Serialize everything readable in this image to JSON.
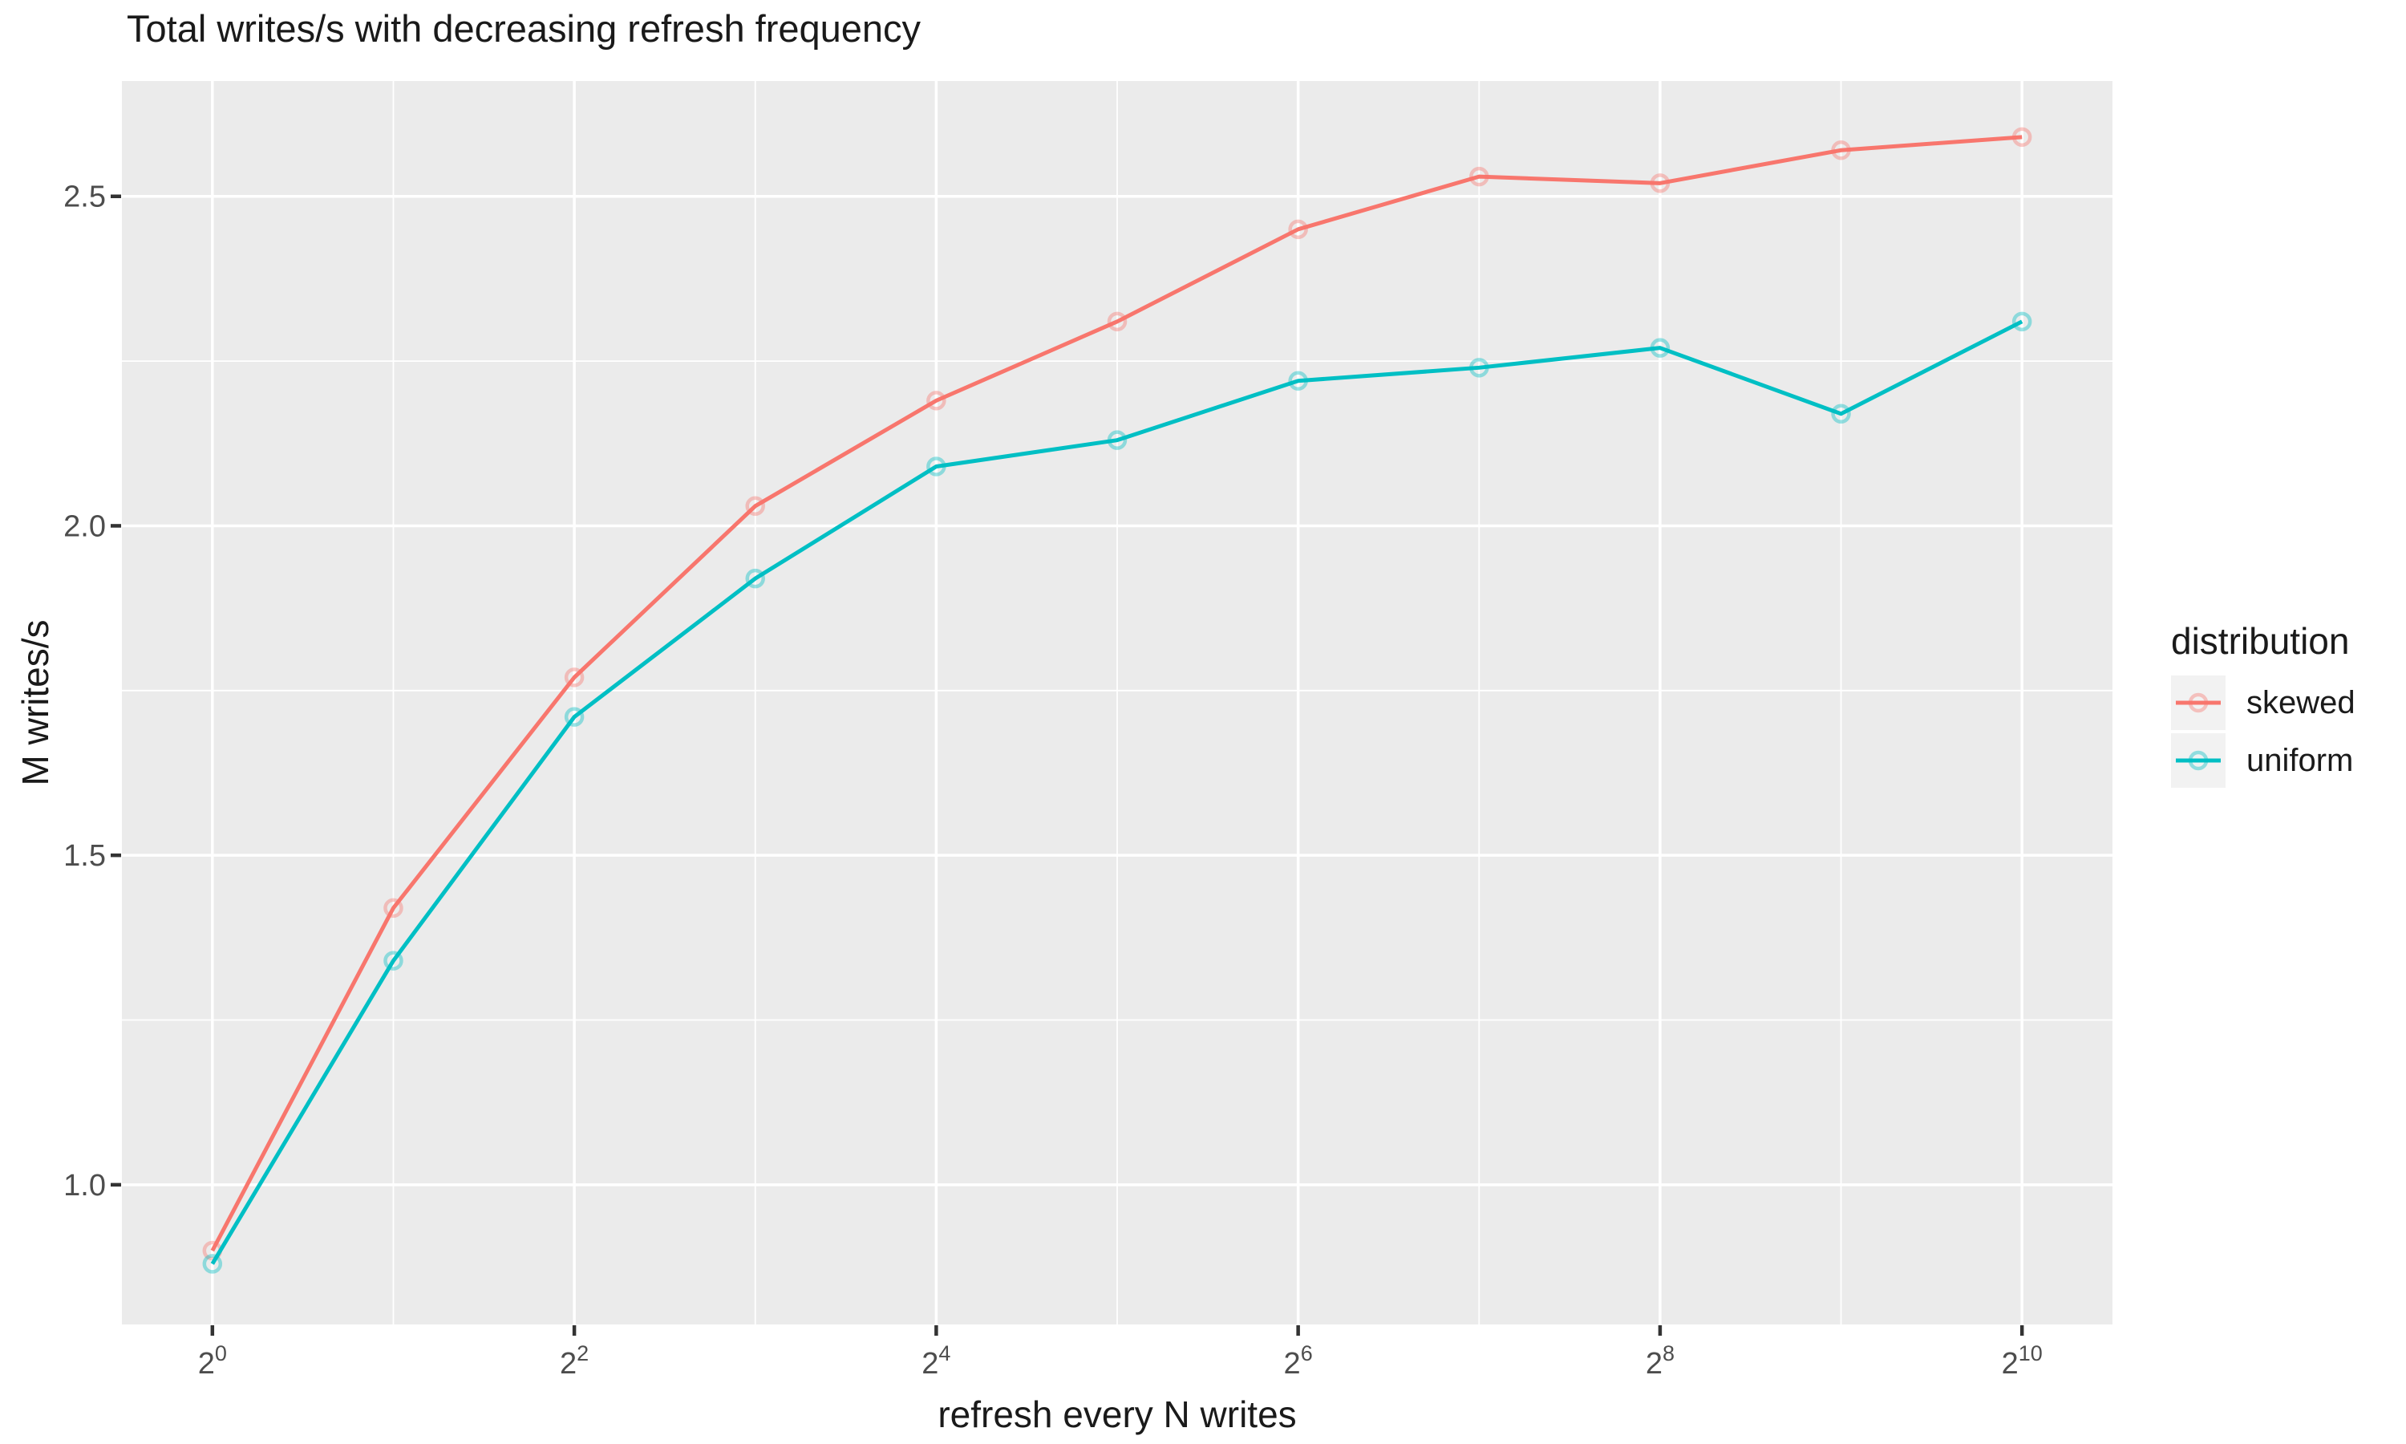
{
  "chart_data": {
    "type": "line",
    "title": "Total writes/s with decreasing refresh frequency",
    "xlabel": "refresh every N writes",
    "ylabel": "M writes/s",
    "x_scale": "log2",
    "x_values": [
      1,
      2,
      4,
      8,
      16,
      32,
      64,
      128,
      256,
      512,
      1024
    ],
    "x_exponents": [
      0,
      1,
      2,
      3,
      4,
      5,
      6,
      7,
      8,
      9,
      10
    ],
    "series": [
      {
        "name": "skewed",
        "color": "#F8766D",
        "values": [
          0.9,
          1.42,
          1.77,
          2.03,
          2.19,
          2.31,
          2.45,
          2.53,
          2.52,
          2.57,
          2.59
        ]
      },
      {
        "name": "uniform",
        "color": "#00BFC4",
        "values": [
          0.88,
          1.34,
          1.71,
          1.92,
          2.09,
          2.13,
          2.22,
          2.24,
          2.27,
          2.17,
          2.31
        ]
      }
    ],
    "x_ticks": [
      {
        "base": "2",
        "exp": "0"
      },
      {
        "base": "2",
        "exp": "2"
      },
      {
        "base": "2",
        "exp": "4"
      },
      {
        "base": "2",
        "exp": "6"
      },
      {
        "base": "2",
        "exp": "8"
      },
      {
        "base": "2",
        "exp": "10"
      }
    ],
    "x_tick_exponents": [
      0,
      2,
      4,
      6,
      8,
      10
    ],
    "x_minor_gridline_exponents": [
      1,
      3,
      5,
      7,
      9
    ],
    "y_tick_labels": [
      "1.0",
      "1.5",
      "2.0",
      "2.5"
    ],
    "y_tick_values": [
      1.0,
      1.5,
      2.0,
      2.5
    ],
    "y_minor_gridline_values": [
      1.25,
      1.75,
      2.25
    ],
    "xlim_exponents": [
      -0.5,
      10.5
    ],
    "ylim": [
      0.788,
      2.675
    ],
    "grid": "on",
    "legend": {
      "title": "distribution",
      "position": "right",
      "entries": [
        {
          "label": "skewed",
          "color": "#F8766D"
        },
        {
          "label": "uniform",
          "color": "#00BFC4"
        }
      ]
    },
    "colors": {
      "panel_bg": "#EBEBEB",
      "gridline": "#FFFFFF",
      "tick_mark": "#333333",
      "tick_text": "#4D4D4D",
      "text": "#1A1A1A",
      "legend_key_bg": "#F2F2F2"
    }
  }
}
